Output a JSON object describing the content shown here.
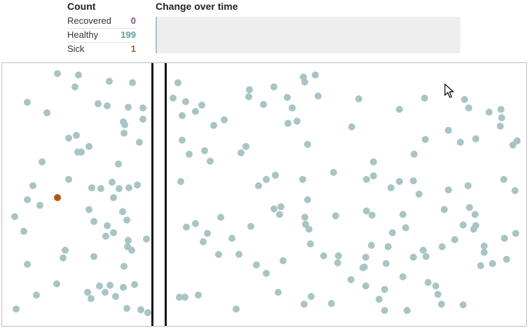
{
  "count": {
    "heading": "Count",
    "rows": [
      {
        "label": "Recovered",
        "value": "0",
        "color": "#8e4f8f"
      },
      {
        "label": "Healthy",
        "value": "199",
        "color": "#5f9ea2"
      },
      {
        "label": "Sick",
        "value": "1",
        "color": "#b5561a"
      }
    ]
  },
  "change_over_time": {
    "heading": "Change over time",
    "healthy_fraction": 0.995,
    "sick_fraction": 0.005
  },
  "simulation": {
    "colors": {
      "healthy": "#a8c4c5",
      "sick": "#b5561a",
      "recovered": "#8e4f8f",
      "wall": "#111111"
    },
    "healthy_count": 199,
    "sick_count": 1,
    "recovered_count": 0,
    "cursor_icon": "arrow-pointer-icon"
  }
}
